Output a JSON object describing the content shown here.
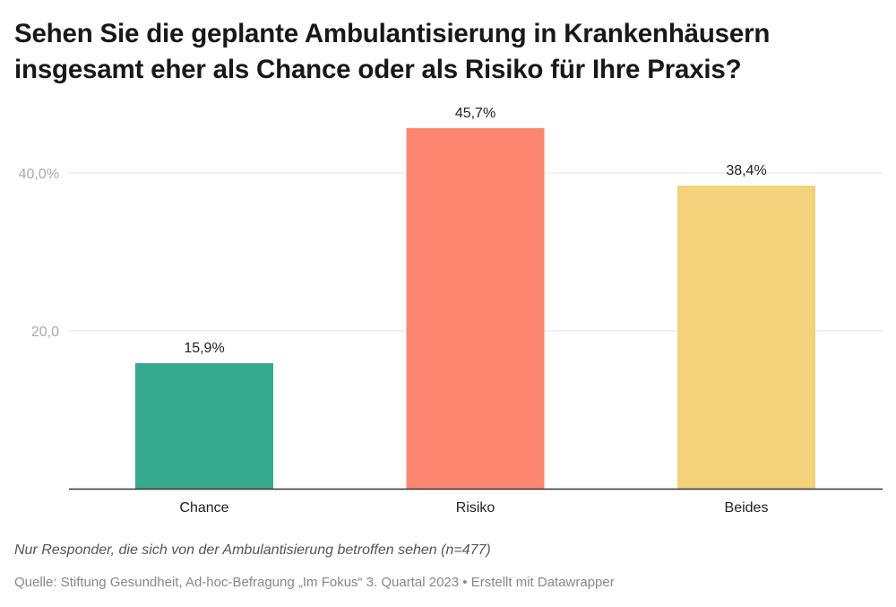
{
  "chart_data": {
    "type": "bar",
    "title": "Sehen Sie die geplante Ambulantisierung in Krankenhäusern insgesamt eher als Chance oder als Risiko für Ihre Praxis?",
    "categories": [
      "Chance",
      "Risiko",
      "Beides"
    ],
    "values": [
      15.9,
      45.7,
      38.4
    ],
    "value_labels": [
      "15,9%",
      "45,7%",
      "38,4%"
    ],
    "colors": [
      "#35a98b",
      "#fc8670",
      "#f3d27b"
    ],
    "xlabel": "",
    "ylabel": "",
    "ylim": [
      0,
      50
    ],
    "yticks": [
      {
        "value": 20,
        "label": "20,0"
      },
      {
        "value": 40,
        "label": "40,0%"
      }
    ],
    "grid": true,
    "legend": "none"
  },
  "footer": {
    "notes": "Nur Responder, die sich von der Ambulantisierung betroffen sehen (n=477)",
    "source": "Quelle: Stiftung Gesundheit, Ad-hoc-Befragung „Im Fokus“ 3. Quartal 2023 • Erstellt mit Datawrapper"
  }
}
